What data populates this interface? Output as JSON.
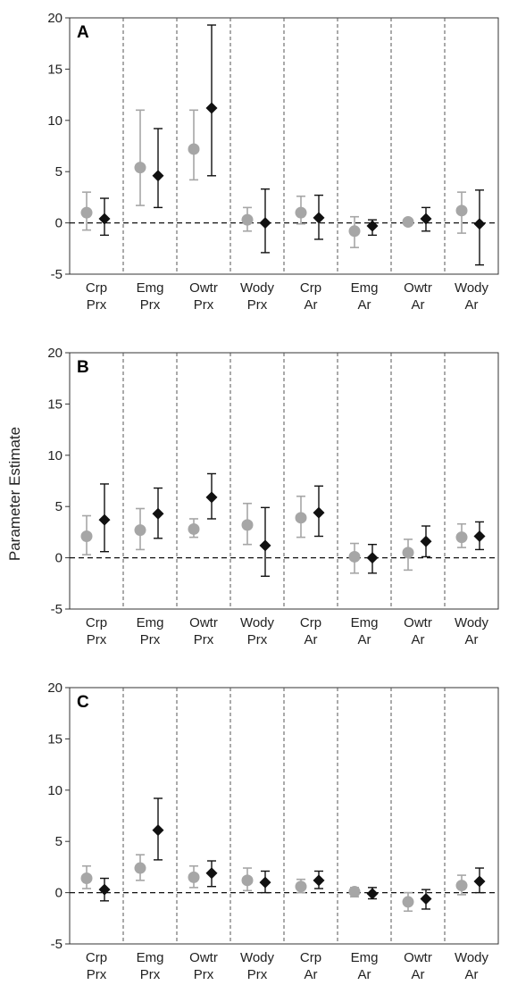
{
  "chart_data": {
    "type": "scatter",
    "ylabel": "Parameter Estimate",
    "ylim": [
      -5,
      20
    ],
    "yticks": [
      -5,
      0,
      5,
      10,
      15,
      20
    ],
    "reference_line": 0,
    "categories": [
      [
        "Crp",
        "Prx"
      ],
      [
        "Emg",
        "Prx"
      ],
      [
        "Owtr",
        "Prx"
      ],
      [
        "Wody",
        "Prx"
      ],
      [
        "Crp",
        "Ar"
      ],
      [
        "Emg",
        "Ar"
      ],
      [
        "Owtr",
        "Ar"
      ],
      [
        "Wody",
        "Ar"
      ]
    ],
    "colors": {
      "series1": "#a6a6a6",
      "series2": "#111111",
      "grid": "#555555"
    },
    "panels": [
      {
        "label": "A",
        "series": [
          {
            "marker": "circle",
            "color": "#a6a6a6",
            "values": [
              1.0,
              5.4,
              7.2,
              0.3,
              1.0,
              -0.8,
              0.1,
              1.2
            ],
            "lower": [
              -0.7,
              1.7,
              4.2,
              -0.8,
              -0.1,
              -2.4,
              -0.2,
              -1.0
            ],
            "upper": [
              3.0,
              11.0,
              11.0,
              1.5,
              2.6,
              0.6,
              0.3,
              3.0
            ]
          },
          {
            "marker": "diamond",
            "color": "#111111",
            "values": [
              0.4,
              4.6,
              11.2,
              0.0,
              0.5,
              -0.3,
              0.4,
              -0.1
            ],
            "lower": [
              -1.2,
              1.5,
              4.6,
              -2.9,
              -1.6,
              -1.2,
              -0.8,
              -4.1
            ],
            "upper": [
              2.4,
              9.2,
              19.3,
              3.3,
              2.7,
              0.3,
              1.5,
              3.2
            ]
          }
        ]
      },
      {
        "label": "B",
        "series": [
          {
            "marker": "circle",
            "color": "#a6a6a6",
            "values": [
              2.1,
              2.7,
              2.8,
              3.2,
              3.9,
              0.1,
              0.5,
              2.0
            ],
            "lower": [
              0.3,
              0.8,
              2.0,
              1.3,
              2.0,
              -1.5,
              -1.2,
              1.0
            ],
            "upper": [
              4.1,
              4.8,
              3.8,
              5.3,
              6.0,
              1.4,
              1.8,
              3.3
            ]
          },
          {
            "marker": "diamond",
            "color": "#111111",
            "values": [
              3.7,
              4.3,
              5.9,
              1.2,
              4.4,
              0.0,
              1.6,
              2.1
            ],
            "lower": [
              0.6,
              1.9,
              3.8,
              -1.8,
              2.1,
              -1.5,
              0.1,
              0.8
            ],
            "upper": [
              7.2,
              6.8,
              8.2,
              4.9,
              7.0,
              1.3,
              3.1,
              3.5
            ]
          }
        ]
      },
      {
        "label": "C",
        "series": [
          {
            "marker": "circle",
            "color": "#a6a6a6",
            "values": [
              1.4,
              2.4,
              1.5,
              1.2,
              0.6,
              0.1,
              -0.9,
              0.7
            ],
            "lower": [
              0.4,
              1.2,
              0.5,
              0.2,
              0.0,
              -0.4,
              -1.8,
              -0.2
            ],
            "upper": [
              2.6,
              3.7,
              2.6,
              2.4,
              1.3,
              0.5,
              0.0,
              1.7
            ]
          },
          {
            "marker": "diamond",
            "color": "#111111",
            "values": [
              0.3,
              6.1,
              1.9,
              1.0,
              1.2,
              -0.1,
              -0.6,
              1.1
            ],
            "lower": [
              -0.8,
              3.2,
              0.6,
              0.0,
              0.4,
              -0.6,
              -1.6,
              0.0
            ],
            "upper": [
              1.4,
              9.2,
              3.1,
              2.1,
              2.1,
              0.5,
              0.3,
              2.4
            ]
          }
        ]
      }
    ]
  }
}
